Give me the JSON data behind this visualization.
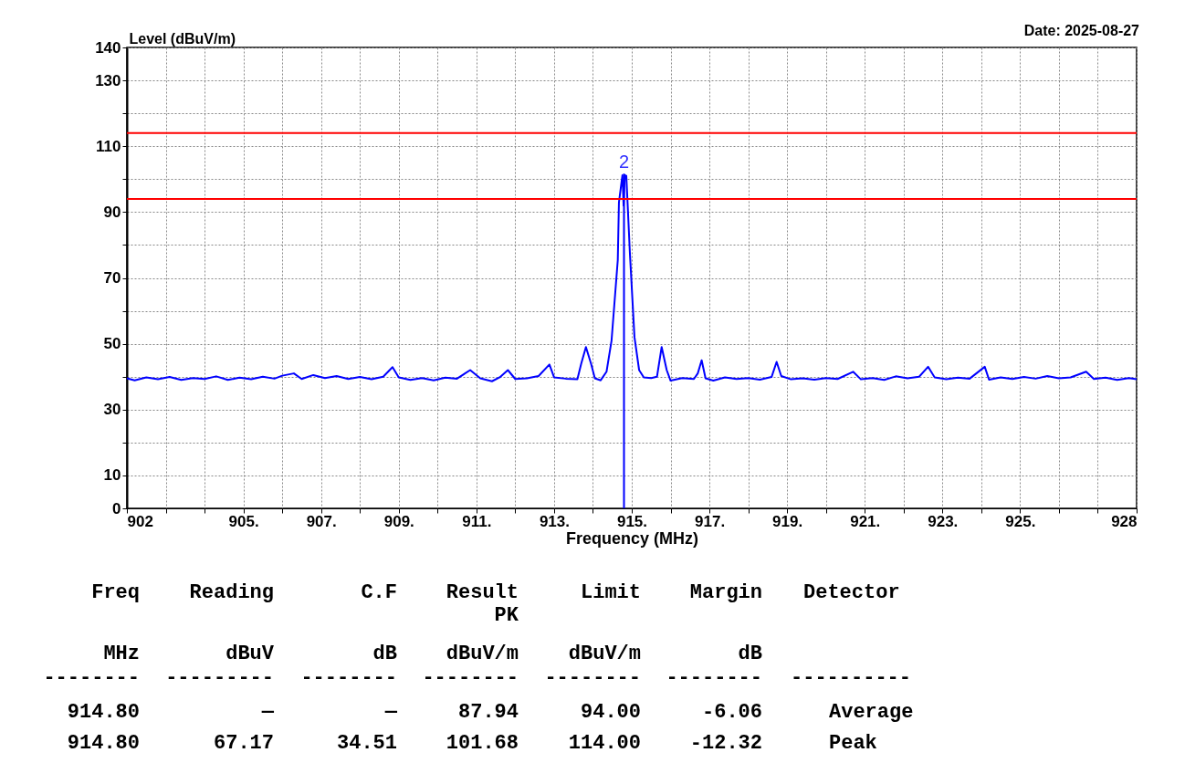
{
  "chart_data": {
    "type": "line",
    "xlabel": "Frequency (MHz)",
    "ylabel": "Level (dBuV/m)",
    "xlim": [
      902,
      928
    ],
    "xticks": [
      902,
      {
        "value": 903,
        "label": null
      },
      {
        "value": 904,
        "label": null
      },
      {
        "value": 905,
        "label": "905."
      },
      {
        "value": 906,
        "label": null
      },
      {
        "value": 907,
        "label": "907."
      },
      {
        "value": 908,
        "label": null
      },
      {
        "value": 909,
        "label": "909."
      },
      {
        "value": 910,
        "label": null
      },
      {
        "value": 911,
        "label": "911."
      },
      {
        "value": 912,
        "label": null
      },
      {
        "value": 913,
        "label": "913."
      },
      {
        "value": 914,
        "label": null
      },
      {
        "value": 915,
        "label": "915."
      },
      {
        "value": 916,
        "label": null
      },
      {
        "value": 917,
        "label": "917."
      },
      {
        "value": 918,
        "label": null
      },
      {
        "value": 919,
        "label": "919."
      },
      {
        "value": 920,
        "label": null
      },
      {
        "value": 921,
        "label": "921."
      },
      {
        "value": 922,
        "label": null
      },
      {
        "value": 923,
        "label": "923."
      },
      {
        "value": 924,
        "label": null
      },
      {
        "value": 925,
        "label": "925."
      },
      {
        "value": 926,
        "label": null
      },
      {
        "value": 927,
        "label": null
      },
      928
    ],
    "ylim": [
      0,
      140
    ],
    "yticks": [
      0,
      10,
      {
        "value": 20,
        "label": null
      },
      30,
      {
        "value": 40,
        "label": null
      },
      50,
      {
        "value": 60,
        "label": null
      },
      70,
      {
        "value": 80,
        "label": null
      },
      90,
      {
        "value": 100,
        "label": null
      },
      110,
      {
        "value": 120,
        "label": null
      },
      130,
      140
    ],
    "grid": true,
    "line_style": "solid",
    "marker": "none",
    "series": [
      {
        "color": "#0000ff",
        "x": [
          902.0,
          902.2,
          902.5,
          902.8,
          903.1,
          903.4,
          903.7,
          904.0,
          904.3,
          904.6,
          904.9,
          905.2,
          905.5,
          905.8,
          906.0,
          906.3,
          906.5,
          906.8,
          907.1,
          907.4,
          907.7,
          908.0,
          908.3,
          908.6,
          908.84,
          909.0,
          909.3,
          909.6,
          909.9,
          910.2,
          910.5,
          910.84,
          911.1,
          911.4,
          911.6,
          911.81,
          912.0,
          912.3,
          912.6,
          912.88,
          913.0,
          913.3,
          913.6,
          913.7,
          913.82,
          913.95,
          914.05,
          914.2,
          914.35,
          914.48,
          914.64,
          914.67,
          914.76,
          914.79,
          914.82,
          914.86,
          914.95,
          915.07,
          915.19,
          915.31,
          915.5,
          915.65,
          915.77,
          915.9,
          916.0,
          916.3,
          916.6,
          916.7,
          916.8,
          916.9,
          917.1,
          917.4,
          917.7,
          918.0,
          918.3,
          918.6,
          918.73,
          918.85,
          919.1,
          919.4,
          919.7,
          920.0,
          920.3,
          920.7,
          920.9,
          921.2,
          921.5,
          921.8,
          922.1,
          922.4,
          922.63,
          922.8,
          923.1,
          923.4,
          923.7,
          924.09,
          924.2,
          924.5,
          924.8,
          925.1,
          925.4,
          925.7,
          926.0,
          926.3,
          926.7,
          926.9,
          927.2,
          927.5,
          927.8,
          928.0
        ],
        "values": [
          39.5,
          38.9,
          39.8,
          39.2,
          39.9,
          39.0,
          39.6,
          39.3,
          40.1,
          39.0,
          39.7,
          39.2,
          40.0,
          39.4,
          40.3,
          41.0,
          39.3,
          40.5,
          39.6,
          40.2,
          39.3,
          39.9,
          39.2,
          40.0,
          42.9,
          39.8,
          39.0,
          39.6,
          38.9,
          39.7,
          39.4,
          42.0,
          39.5,
          38.6,
          39.8,
          42.0,
          39.3,
          39.5,
          40.2,
          43.7,
          39.8,
          39.4,
          39.2,
          44,
          49,
          44,
          39.5,
          38.9,
          41.5,
          51,
          75.4,
          93,
          101.2,
          92,
          101.2,
          101,
          78,
          52,
          42,
          39.8,
          39.6,
          40.0,
          49,
          42,
          38.8,
          39.6,
          39.3,
          41,
          45,
          39.5,
          38.8,
          39.8,
          39.3,
          39.6,
          39.1,
          39.9,
          44.5,
          40.2,
          39.2,
          39.5,
          39.1,
          39.6,
          39.3,
          41.5,
          39.2,
          39.6,
          39.0,
          40.1,
          39.5,
          40.0,
          43.0,
          39.8,
          39.2,
          39.7,
          39.4,
          43.0,
          39.1,
          39.8,
          39.3,
          39.9,
          39.4,
          40.2,
          39.5,
          39.8,
          41.5,
          39.3,
          39.7,
          39.0,
          39.6,
          39.2
        ]
      },
      {
        "color": "#0000ff",
        "x": [
          914.8,
          914.8
        ],
        "values": [
          0,
          101.7
        ]
      }
    ],
    "ref_lines": [
      {
        "axis": "y",
        "value": 114,
        "color": "#ff0000"
      },
      {
        "axis": "y",
        "value": 94,
        "color": "#ff0000"
      }
    ],
    "annotations": [
      "Date: 2025-08-27",
      {
        "text": "2",
        "x": 914.8,
        "y": 101.68
      },
      "Freq",
      "Reading",
      "C.F",
      "Result",
      "Limit",
      "Margin",
      "Detector",
      "PK",
      "MHz",
      "dBuV",
      "dB",
      "dBuV/m",
      "dBuV/m",
      "dB",
      "--------",
      "---------",
      "--------",
      "--------",
      "--------",
      "--------",
      "----------",
      "914.80",
      "—",
      "—",
      "87.94",
      "94.00",
      "-6.06",
      "Average",
      "914.80",
      "67.17",
      "34.51",
      "101.68",
      "114.00",
      "-12.32",
      "Peak"
    ]
  }
}
